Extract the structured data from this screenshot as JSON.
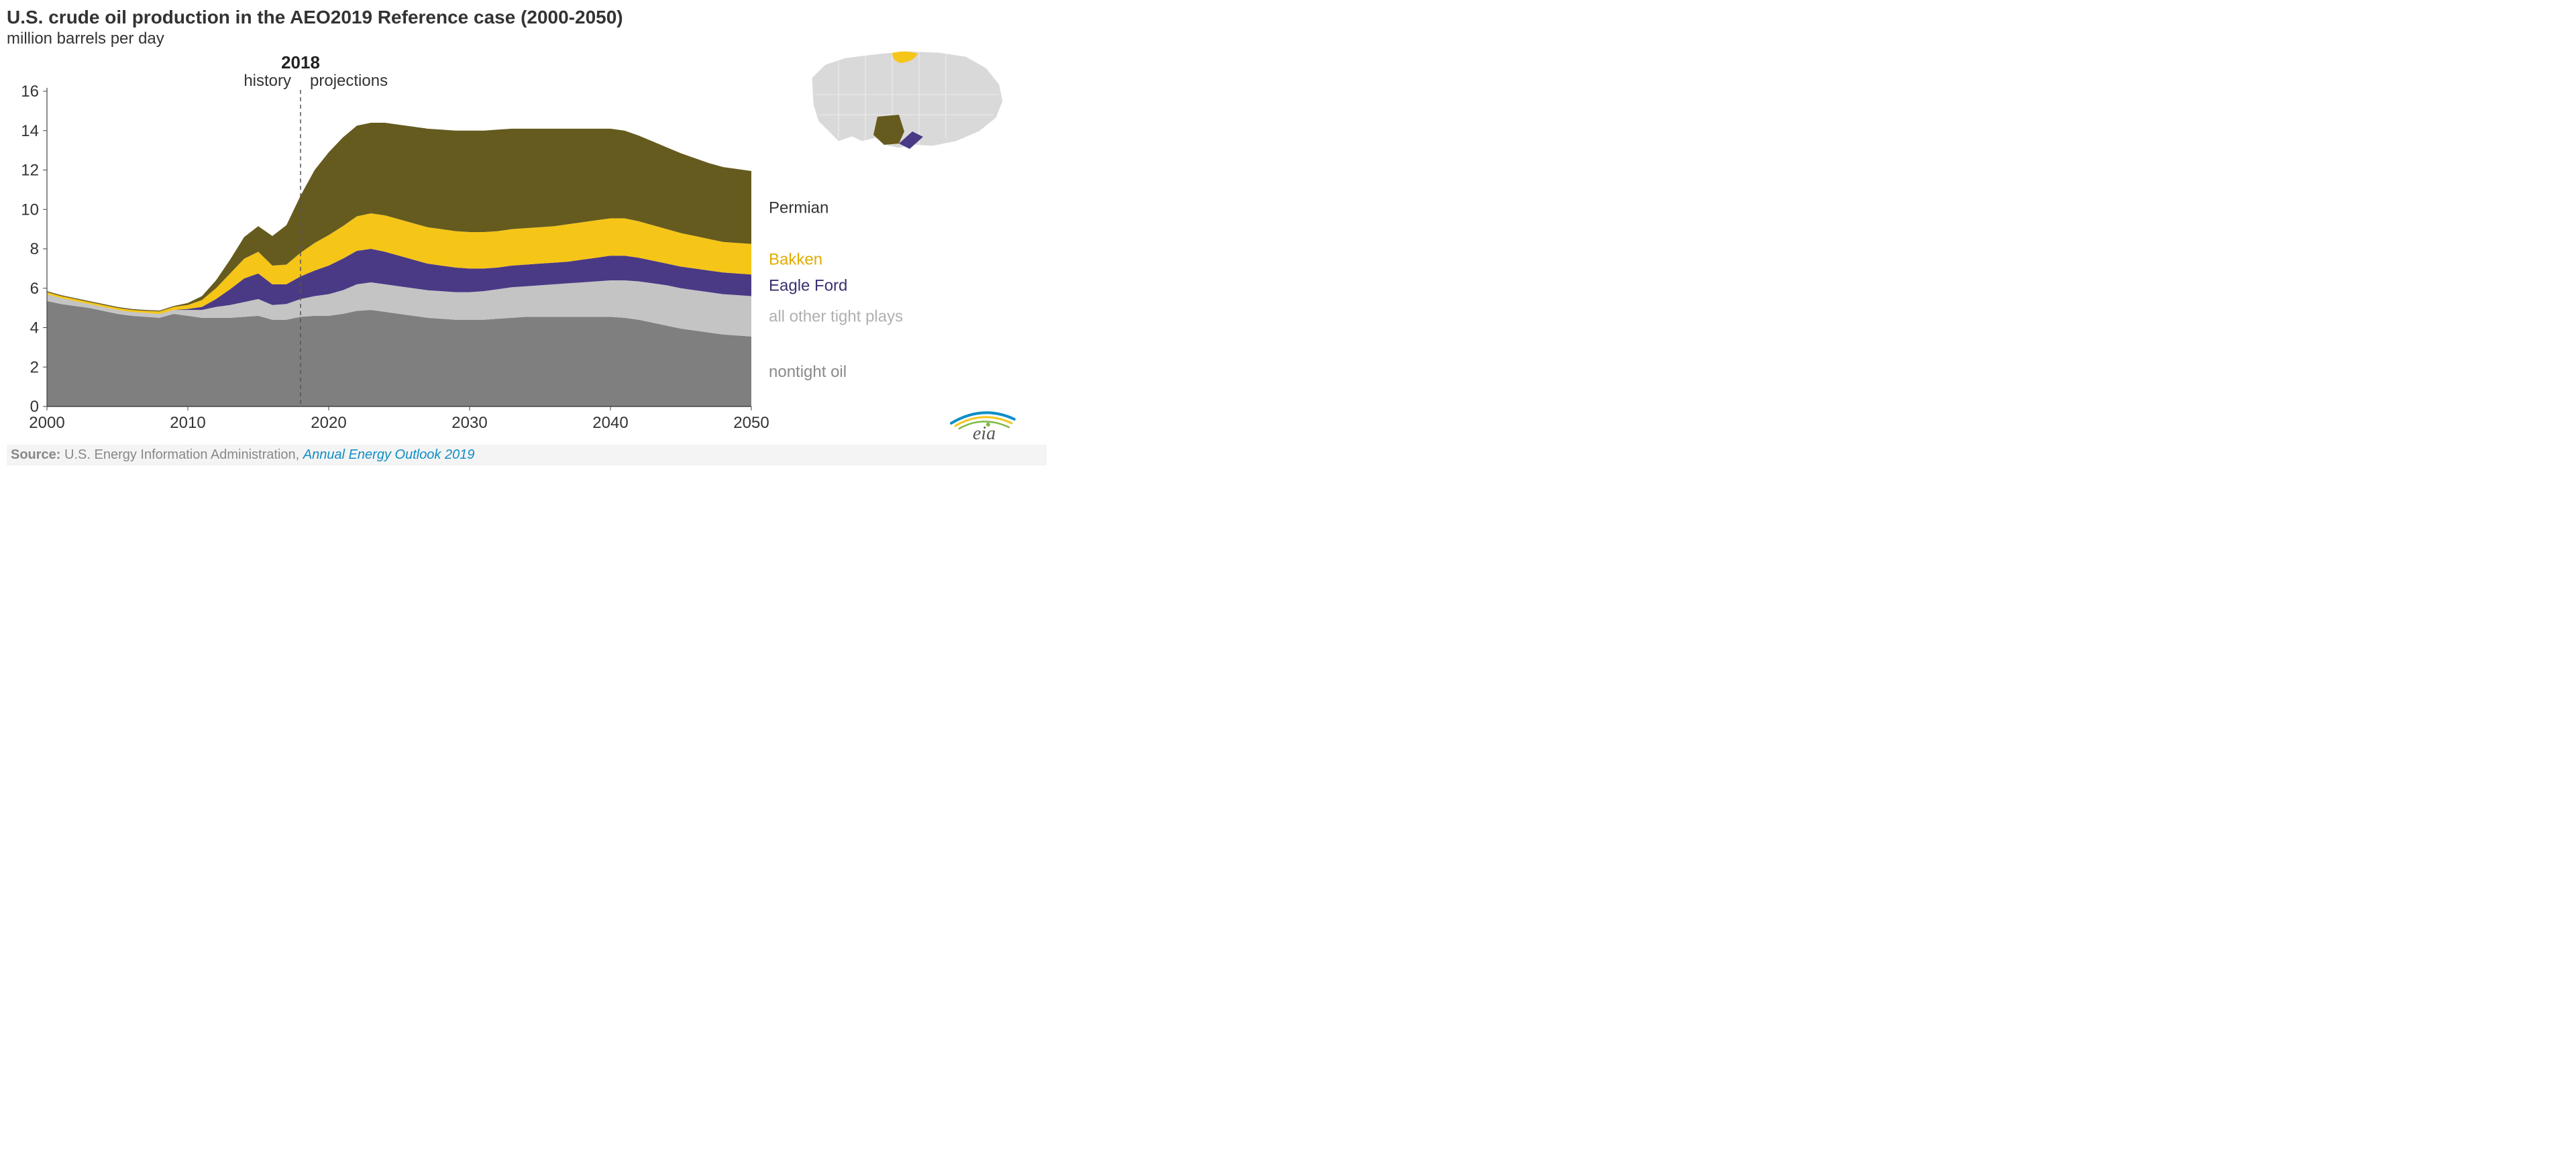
{
  "chart": {
    "type": "stacked-area",
    "title": "U.S. crude oil production in the AEO2019 Reference case (2000-2050)",
    "subtitle": "million barrels per day",
    "title_fontsize": 28,
    "subtitle_fontsize": 24,
    "title_color": "#333333",
    "background_color": "#ffffff",
    "plot_background": "#ffffff",
    "xlim": [
      2000,
      2050
    ],
    "ylim": [
      0,
      16
    ],
    "xticks": [
      2000,
      2010,
      2020,
      2030,
      2040,
      2050
    ],
    "yticks": [
      0,
      2,
      4,
      6,
      8,
      10,
      12,
      14,
      16
    ],
    "tick_fontsize": 24,
    "tick_color": "#333333",
    "axis_line_color": "#444444",
    "grid": false,
    "divider": {
      "year": 2018,
      "label_year": "2018",
      "label_left": "history",
      "label_right": "projections",
      "line_color": "#555555",
      "line_dash": "6,5",
      "line_width": 1.5,
      "label_fontsize": 24,
      "year_fontsize": 26,
      "year_fontweight": "bold"
    },
    "years": [
      2000,
      2001,
      2002,
      2003,
      2004,
      2005,
      2006,
      2007,
      2008,
      2009,
      2010,
      2011,
      2012,
      2013,
      2014,
      2015,
      2016,
      2017,
      2018,
      2019,
      2020,
      2021,
      2022,
      2023,
      2024,
      2025,
      2026,
      2027,
      2028,
      2029,
      2030,
      2031,
      2032,
      2033,
      2034,
      2035,
      2036,
      2037,
      2038,
      2039,
      2040,
      2041,
      2042,
      2043,
      2044,
      2045,
      2046,
      2047,
      2048,
      2049,
      2050
    ],
    "series": [
      {
        "name": "nontight oil",
        "color": "#7f7f7f",
        "label_color": "#8a8a8a",
        "values": [
          5.35,
          5.2,
          5.1,
          5.0,
          4.85,
          4.7,
          4.6,
          4.55,
          4.5,
          4.7,
          4.6,
          4.5,
          4.5,
          4.5,
          4.55,
          4.6,
          4.4,
          4.4,
          4.55,
          4.6,
          4.6,
          4.7,
          4.85,
          4.9,
          4.8,
          4.7,
          4.6,
          4.5,
          4.45,
          4.4,
          4.4,
          4.4,
          4.45,
          4.5,
          4.55,
          4.55,
          4.55,
          4.55,
          4.55,
          4.55,
          4.55,
          4.5,
          4.4,
          4.25,
          4.1,
          3.95,
          3.85,
          3.75,
          3.65,
          3.6,
          3.55
        ]
      },
      {
        "name": "all other tight plays",
        "color": "#c4c4c4",
        "label_color": "#b0b0b0",
        "values": [
          0.35,
          0.3,
          0.25,
          0.2,
          0.2,
          0.2,
          0.2,
          0.2,
          0.2,
          0.2,
          0.3,
          0.4,
          0.55,
          0.65,
          0.75,
          0.85,
          0.75,
          0.8,
          0.9,
          1.0,
          1.1,
          1.2,
          1.35,
          1.4,
          1.4,
          1.4,
          1.4,
          1.4,
          1.4,
          1.4,
          1.4,
          1.45,
          1.5,
          1.55,
          1.55,
          1.6,
          1.65,
          1.7,
          1.75,
          1.8,
          1.85,
          1.9,
          1.95,
          2.0,
          2.05,
          2.05,
          2.05,
          2.05,
          2.05,
          2.05,
          2.05
        ]
      },
      {
        "name": "Eagle Ford",
        "color": "#4a3a85",
        "label_color": "#3c2f72",
        "values": [
          0.0,
          0.0,
          0.0,
          0.0,
          0.0,
          0.0,
          0.0,
          0.0,
          0.0,
          0.0,
          0.05,
          0.15,
          0.4,
          0.8,
          1.2,
          1.3,
          1.05,
          1.0,
          1.15,
          1.3,
          1.45,
          1.6,
          1.7,
          1.7,
          1.65,
          1.55,
          1.45,
          1.35,
          1.3,
          1.25,
          1.2,
          1.15,
          1.1,
          1.1,
          1.1,
          1.1,
          1.1,
          1.1,
          1.15,
          1.2,
          1.25,
          1.25,
          1.2,
          1.15,
          1.1,
          1.1,
          1.1,
          1.1,
          1.1,
          1.1,
          1.1
        ]
      },
      {
        "name": "Bakken",
        "color": "#f5c518",
        "label_color": "#e0ac00",
        "values": [
          0.1,
          0.1,
          0.1,
          0.1,
          0.1,
          0.1,
          0.1,
          0.1,
          0.12,
          0.15,
          0.2,
          0.35,
          0.55,
          0.8,
          1.0,
          1.1,
          0.95,
          1.0,
          1.2,
          1.4,
          1.55,
          1.65,
          1.75,
          1.8,
          1.85,
          1.85,
          1.85,
          1.85,
          1.85,
          1.85,
          1.85,
          1.85,
          1.85,
          1.85,
          1.85,
          1.85,
          1.85,
          1.9,
          1.9,
          1.9,
          1.9,
          1.9,
          1.85,
          1.8,
          1.75,
          1.7,
          1.65,
          1.6,
          1.55,
          1.55,
          1.55
        ]
      },
      {
        "name": "Permian",
        "color": "#665b1e",
        "label_color": "#333333",
        "values": [
          0.05,
          0.05,
          0.05,
          0.05,
          0.05,
          0.05,
          0.05,
          0.05,
          0.05,
          0.05,
          0.1,
          0.2,
          0.4,
          0.7,
          1.1,
          1.3,
          1.5,
          2.0,
          2.9,
          3.7,
          4.2,
          4.5,
          4.6,
          4.6,
          4.7,
          4.8,
          4.9,
          5.0,
          5.05,
          5.1,
          5.15,
          5.15,
          5.15,
          5.1,
          5.05,
          5.0,
          4.95,
          4.85,
          4.75,
          4.65,
          4.55,
          4.45,
          4.35,
          4.25,
          4.15,
          4.05,
          3.95,
          3.85,
          3.8,
          3.75,
          3.7
        ]
      }
    ],
    "legend": {
      "position": "right",
      "fontsize": 24,
      "entries": [
        {
          "key": "Permian",
          "y_at_2050_cum": 10.0
        },
        {
          "key": "Bakken",
          "y_at_2050_cum": 7.6
        },
        {
          "key": "Eagle Ford",
          "y_at_2050_cum": 6.3
        },
        {
          "key": "all other tight plays",
          "y_at_2050_cum": 5.0
        },
        {
          "key": "nontight oil",
          "y_at_2050_cum": 2.8
        }
      ]
    }
  },
  "inset_map": {
    "description": "US map with highlighted basins",
    "base_color": "#d9d9d9",
    "outline_color": "#ffffff",
    "regions": [
      {
        "name": "Bakken",
        "color": "#f5c518",
        "approx_state": "ND/MT"
      },
      {
        "name": "Permian",
        "color": "#665b1e",
        "approx_state": "West TX / SE NM"
      },
      {
        "name": "Eagle Ford",
        "color": "#4a3a85",
        "approx_state": "South TX"
      }
    ]
  },
  "source": {
    "prefix": "Source:",
    "org": "U.S. Energy Information Administration,",
    "publication": "Annual Energy Outlook 2019",
    "bg": "#f4f4f4",
    "color": "#888888",
    "italic_color": "#0f8ec7",
    "fontsize": 20
  },
  "logo": {
    "text": "eia",
    "swoosh_colors": [
      "#0f8ec7",
      "#f5c518",
      "#7fba42"
    ],
    "text_color": "#555555"
  }
}
